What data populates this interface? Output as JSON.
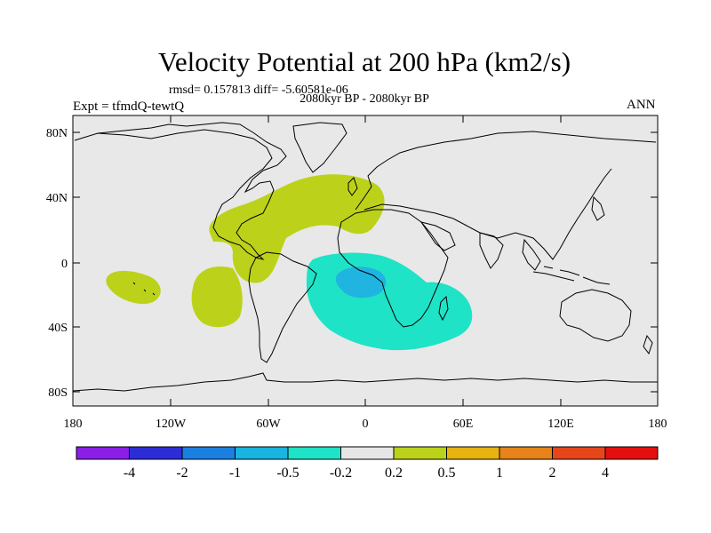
{
  "title": "Velocity Potential at 200 hPa (km2/s)",
  "stats": "rmsd= 0.157813 diff= -5.60581e-06",
  "subtitle": "2080kyr BP - 2080kyr BP",
  "experiment": "Expt = tfmdQ-tewtQ",
  "season": "ANN",
  "map": {
    "lat_range": [
      -90,
      90
    ],
    "lon_range": [
      -180,
      180
    ],
    "y_tick_labels": [
      "80N",
      "40N",
      "0",
      "40S",
      "80S"
    ],
    "x_tick_labels": [
      "180",
      "120W",
      "60W",
      "0",
      "60E",
      "120E",
      "180"
    ],
    "fill_neutral": "#e8e8e8",
    "anomalies": [
      {
        "sign": "positive",
        "level": "0.2 to 0.5",
        "color": "#bcd21a",
        "region": "North Atlantic / Central America"
      },
      {
        "sign": "positive",
        "level": "0.2 to 0.5",
        "color": "#bcd21a",
        "region": "Southeast Pacific off South America"
      },
      {
        "sign": "positive",
        "level": "0.2 to 0.5",
        "color": "#bcd21a",
        "region": "Central South Pacific"
      },
      {
        "sign": "negative",
        "level": "-0.5 to -0.2",
        "color": "#1fe3c6",
        "region": "South Atlantic / Southern Africa"
      },
      {
        "sign": "negative",
        "level": "-1 to -0.5",
        "color": "#20b5e0",
        "region": "Central Africa (Congo)"
      }
    ]
  },
  "colorbar": {
    "colors": [
      "#8b1ee8",
      "#2d2dd8",
      "#1a7fe0",
      "#18b4e2",
      "#1fe3c6",
      "#e6e6e6",
      "#bcd21a",
      "#e6b30f",
      "#e8821a",
      "#e6461a",
      "#e60f0f"
    ],
    "labels": [
      "-4",
      "-2",
      "-1",
      "-0.5",
      "-0.2",
      "0.2",
      "0.5",
      "1",
      "2",
      "4"
    ]
  }
}
